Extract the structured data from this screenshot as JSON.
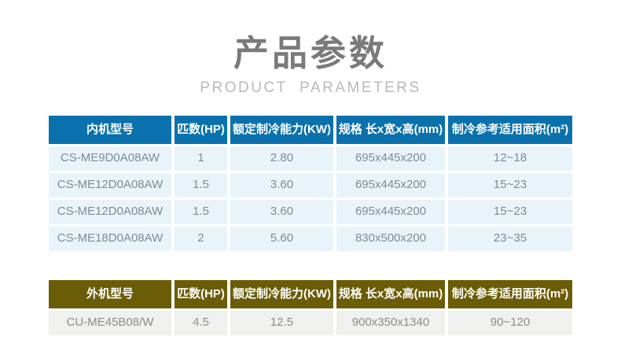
{
  "title": {
    "main": "产品参数",
    "subtitle": "PRODUCT  PARAMETERS"
  },
  "colors": {
    "indoor_header": "#0a71ad",
    "indoor_row_bg": "#e9f4fa",
    "outdoor_header": "#6b5c07",
    "outdoor_row_bg": "#f0f0ee"
  },
  "indoor_table": {
    "headers": [
      "内机型号",
      "匹数(HP)",
      "额定制冷能力(KW)",
      "规格 长x宽x高(mm)",
      "制冷参考适用面积(m²)"
    ],
    "rows": [
      [
        "CS-ME9D0A08AW",
        "1",
        "2.80",
        "695x445x200",
        "12~18"
      ],
      [
        "CS-ME12D0A08AW",
        "1.5",
        "3.60",
        "695x445x200",
        "15~23"
      ],
      [
        "CS-ME12D0A08AW",
        "1.5",
        "3.60",
        "695x445x200",
        "15~23"
      ],
      [
        "CS-ME18D0A08AW",
        "2",
        "5.60",
        "830x500x200",
        "23~35"
      ]
    ]
  },
  "outdoor_table": {
    "headers": [
      "外机型号",
      "匹数(HP)",
      "额定制冷能力(KW)",
      "规格 长x宽x高(mm)",
      "制冷参考适用面积(m²)"
    ],
    "rows": [
      [
        "CU-ME45B08/W",
        "4.5",
        "12.5",
        "900x350x1340",
        "90~120"
      ]
    ]
  }
}
